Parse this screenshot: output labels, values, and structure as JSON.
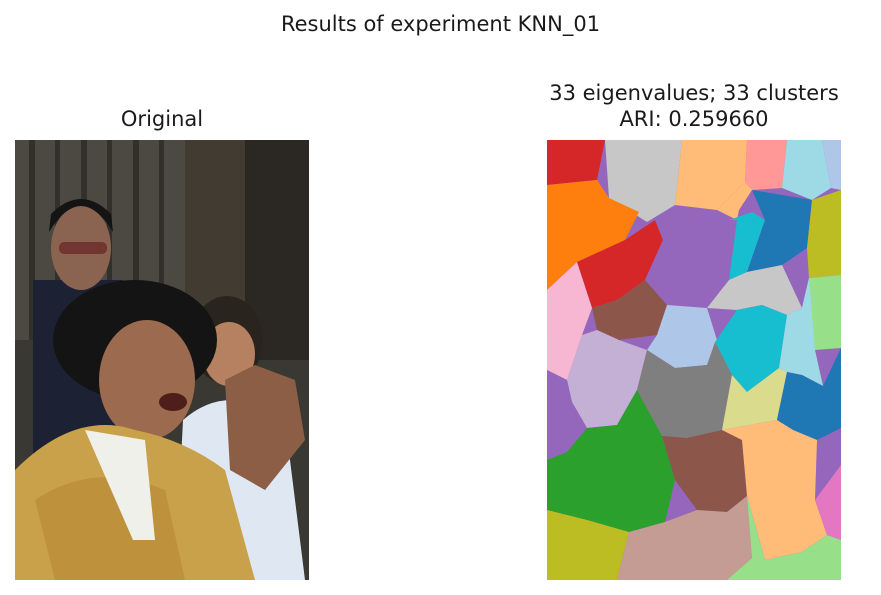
{
  "figure": {
    "suptitle": "Results of experiment KNN_01"
  },
  "chart_data": [
    {
      "type": "image",
      "title": "Original",
      "content": "photograph of three people; woman in yellow silk jacket gesturing in foreground"
    },
    {
      "type": "segmentation",
      "title_lines": [
        "33 eigenvalues; 33 clusters",
        "ARI: 0.259660"
      ],
      "eigenvalues": 33,
      "clusters": 33,
      "ari": 0.25966,
      "palette": [
        "#d62728",
        "#c7c7c7",
        "#ffbb78",
        "#ff9896",
        "#9edae5",
        "#aec7e8",
        "#ff7f0e",
        "#17becf",
        "#1f77b4",
        "#bcbd22",
        "#9467bd",
        "#8c564b",
        "#98df8a",
        "#f7b6d2",
        "#c5b0d5",
        "#7f7f7f",
        "#dbdb8d",
        "#2ca02c",
        "#c49c94",
        "#e377c2"
      ]
    }
  ]
}
